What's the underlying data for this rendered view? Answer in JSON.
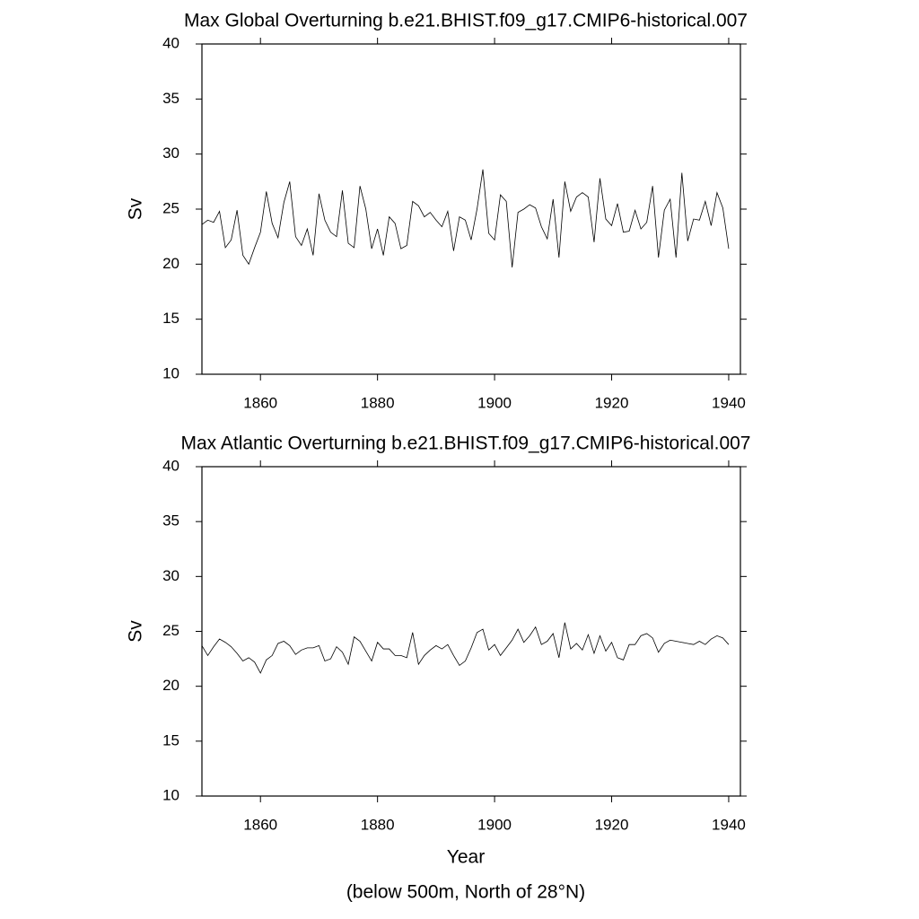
{
  "chart_data": [
    {
      "type": "line",
      "title": "Max Global Overturning b.e21.BHIST.f09_g17.CMIP6-historical.007",
      "ylabel": "Sv",
      "x": [
        1850,
        1851,
        1852,
        1853,
        1854,
        1855,
        1856,
        1857,
        1858,
        1859,
        1860,
        1861,
        1862,
        1863,
        1864,
        1865,
        1866,
        1867,
        1868,
        1869,
        1870,
        1871,
        1872,
        1873,
        1874,
        1875,
        1876,
        1877,
        1878,
        1879,
        1880,
        1881,
        1882,
        1883,
        1884,
        1885,
        1886,
        1887,
        1888,
        1889,
        1890,
        1891,
        1892,
        1893,
        1894,
        1895,
        1896,
        1897,
        1898,
        1899,
        1900,
        1901,
        1902,
        1903,
        1904,
        1905,
        1906,
        1907,
        1908,
        1909,
        1910,
        1911,
        1912,
        1913,
        1914,
        1915,
        1916,
        1917,
        1918,
        1919,
        1920,
        1921,
        1922,
        1923,
        1924,
        1925,
        1926,
        1927,
        1928,
        1929,
        1930,
        1931,
        1932,
        1933,
        1934,
        1935,
        1936,
        1937,
        1938,
        1939,
        1940
      ],
      "series": [
        {
          "color": "#000000",
          "values": [
            23.6,
            24,
            23.8,
            24.8,
            21.5,
            22.2,
            24.9,
            20.8,
            20,
            21.5,
            22.9,
            26.6,
            23.7,
            22.4,
            25.6,
            27.5,
            22.5,
            21.7,
            23.2,
            20.8,
            26.4,
            24,
            22.9,
            22.5,
            26.7,
            21.9,
            21.5,
            27.1,
            25,
            21.4,
            23.2,
            20.8,
            24.3,
            23.7,
            21.4,
            21.7,
            25.7,
            25.3,
            24.3,
            24.7,
            24,
            23.4,
            24.8,
            21.2,
            24.3,
            24,
            22.2,
            25,
            28.6,
            22.8,
            22.2,
            26.3,
            25.7,
            19.7,
            24.7,
            25,
            25.4,
            25.1,
            23.4,
            22.3,
            25.9,
            20.6,
            27.5,
            24.8,
            26.1,
            26.5,
            26.1,
            22,
            27.8,
            24.1,
            23.5,
            25.5,
            22.9,
            23,
            24.9,
            23.2,
            23.8,
            27.1,
            20.6,
            24.9,
            25.9,
            20.6,
            28.3,
            22.1,
            24.1,
            24,
            25.7,
            23.5,
            26.5,
            25.1,
            21.4
          ]
        }
      ],
      "xlim": [
        1850,
        1942
      ],
      "ylim": [
        10,
        40
      ],
      "xticks": [
        1860,
        1880,
        1900,
        1920,
        1940
      ],
      "yticks": [
        10,
        15,
        20,
        25,
        30,
        35,
        40
      ]
    },
    {
      "type": "line",
      "title": "Max Atlantic Overturning b.e21.BHIST.f09_g17.CMIP6-historical.007",
      "ylabel": "Sv",
      "xlabel": "Year",
      "note": "(below 500m, North of 28°N)",
      "x": [
        1850,
        1851,
        1852,
        1853,
        1854,
        1855,
        1856,
        1857,
        1858,
        1859,
        1860,
        1861,
        1862,
        1863,
        1864,
        1865,
        1866,
        1867,
        1868,
        1869,
        1870,
        1871,
        1872,
        1873,
        1874,
        1875,
        1876,
        1877,
        1878,
        1879,
        1880,
        1881,
        1882,
        1883,
        1884,
        1885,
        1886,
        1887,
        1888,
        1889,
        1890,
        1891,
        1892,
        1893,
        1894,
        1895,
        1896,
        1897,
        1898,
        1899,
        1900,
        1901,
        1902,
        1903,
        1904,
        1905,
        1906,
        1907,
        1908,
        1909,
        1910,
        1911,
        1912,
        1913,
        1914,
        1915,
        1916,
        1917,
        1918,
        1919,
        1920,
        1921,
        1922,
        1923,
        1924,
        1925,
        1926,
        1927,
        1928,
        1929,
        1930,
        1931,
        1932,
        1933,
        1934,
        1935,
        1936,
        1937,
        1938,
        1939,
        1940
      ],
      "series": [
        {
          "color": "#000000",
          "values": [
            23.7,
            22.8,
            23.6,
            24.3,
            24,
            23.6,
            23,
            22.3,
            22.6,
            22.2,
            21.2,
            22.4,
            22.8,
            23.9,
            24.1,
            23.7,
            22.9,
            23.3,
            23.5,
            23.5,
            23.7,
            22.3,
            22.5,
            23.6,
            23.1,
            22,
            24.5,
            24.1,
            23.2,
            22.3,
            24,
            23.4,
            23.4,
            22.8,
            22.8,
            22.6,
            24.9,
            22,
            22.8,
            23.3,
            23.7,
            23.4,
            23.8,
            22.8,
            21.9,
            22.3,
            23.5,
            24.9,
            25.2,
            23.3,
            23.8,
            22.8,
            23.5,
            24.2,
            25.2,
            24,
            24.6,
            25.4,
            23.8,
            24.1,
            24.8,
            22.6,
            25.8,
            23.4,
            23.9,
            23.3,
            24.7,
            23,
            24.6,
            23.2,
            24,
            22.6,
            22.4,
            23.8,
            23.8,
            24.6,
            24.8,
            24.4,
            23.1,
            23.9,
            24.2,
            24.1,
            24,
            23.9,
            23.8,
            24.1,
            23.8,
            24.3,
            24.6,
            24.4,
            23.8
          ]
        }
      ],
      "xlim": [
        1850,
        1942
      ],
      "ylim": [
        10,
        40
      ],
      "xticks": [
        1860,
        1880,
        1900,
        1920,
        1940
      ],
      "yticks": [
        10,
        15,
        20,
        25,
        30,
        35,
        40
      ]
    }
  ]
}
